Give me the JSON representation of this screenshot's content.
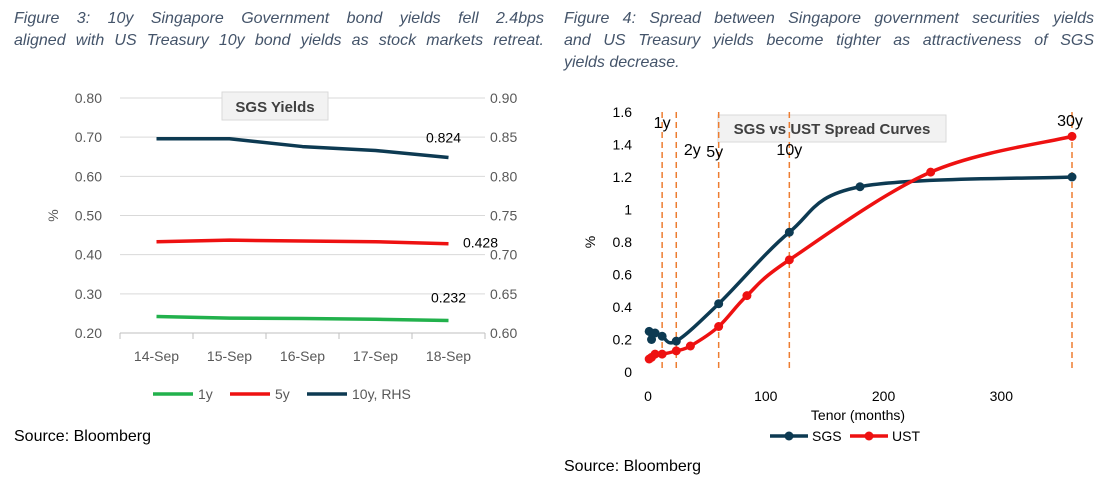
{
  "figure3": {
    "caption_line1": "Figure 3: 10y Singapore Government bond yields fell 2.4bps",
    "caption_line2": "aligned with US Treasury 10y bond yields as stock markets retreat.",
    "source": "Source: Bloomberg"
  },
  "figure4": {
    "caption_line1": "Figure 4: Spread between Singapore government securities yields",
    "caption_line2": "and US Treasury yields become tighter as attractiveness of SGS",
    "caption_line3": "yields decrease.",
    "source": "Source: Bloomberg"
  },
  "chart_data": [
    {
      "type": "line",
      "title": "SGS Yields",
      "categories": [
        "14-Sep",
        "15-Sep",
        "16-Sep",
        "17-Sep",
        "18-Sep"
      ],
      "ylabel": "%",
      "ylim": [
        0.2,
        0.8
      ],
      "yticks": [
        "0.20",
        "0.30",
        "0.40",
        "0.50",
        "0.60",
        "0.70",
        "0.80"
      ],
      "y2lim": [
        0.6,
        0.9
      ],
      "y2ticks": [
        "0.60",
        "0.65",
        "0.70",
        "0.75",
        "0.80",
        "0.85",
        "0.90"
      ],
      "grid": true,
      "legend_position": "bottom",
      "series": [
        {
          "name": "1y",
          "axis": "left",
          "color": "#22b14c",
          "values": [
            0.242,
            0.238,
            0.237,
            0.235,
            0.232
          ],
          "end_label": "0.232"
        },
        {
          "name": "5y",
          "axis": "left",
          "color": "#ee1111",
          "values": [
            0.433,
            0.437,
            0.435,
            0.433,
            0.428
          ],
          "end_label": "0.428"
        },
        {
          "name": "10y, RHS",
          "axis": "right",
          "color": "#0d3a52",
          "values": [
            0.848,
            0.848,
            0.838,
            0.833,
            0.824
          ],
          "end_label": "0.824"
        }
      ]
    },
    {
      "type": "line",
      "title": "SGS vs UST Spread Curves",
      "xlabel": "Tenor (months)",
      "ylabel": "%",
      "xlim": [
        0,
        360
      ],
      "xticks": [
        0,
        100,
        200,
        300
      ],
      "ylim": [
        0,
        1.6
      ],
      "yticks": [
        "0",
        "0.2",
        "0.4",
        "0.6",
        "0.8",
        "1",
        "1.2",
        "1.4",
        "1.6"
      ],
      "grid": false,
      "legend_position": "bottom",
      "vlines": [
        {
          "x": 12,
          "label": "1y"
        },
        {
          "x": 24,
          "label": "2y"
        },
        {
          "x": 60,
          "label": "5y"
        },
        {
          "x": 120,
          "label": "10y"
        },
        {
          "x": 360,
          "label": "30y"
        }
      ],
      "series": [
        {
          "name": "SGS",
          "color": "#0d3a52",
          "x": [
            1,
            3,
            6,
            12,
            24,
            60,
            120,
            180,
            360
          ],
          "y": [
            0.25,
            0.2,
            0.24,
            0.22,
            0.19,
            0.42,
            0.86,
            1.14,
            1.2
          ]
        },
        {
          "name": "UST",
          "color": "#ee1111",
          "x": [
            1,
            3,
            6,
            12,
            24,
            36,
            60,
            84,
            120,
            240,
            360
          ],
          "y": [
            0.08,
            0.09,
            0.11,
            0.11,
            0.13,
            0.16,
            0.28,
            0.47,
            0.69,
            1.23,
            1.45
          ]
        }
      ]
    }
  ]
}
